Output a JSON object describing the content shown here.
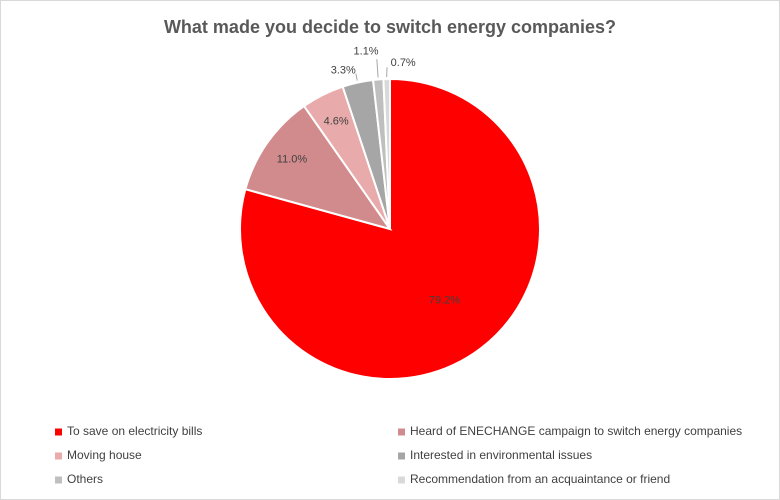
{
  "chart_data": {
    "type": "pie",
    "title": "What made you decide to switch energy companies?",
    "categories": [
      "To save on electricity bills",
      "Heard of ENECHANGE campaign to switch energy companies",
      "Moving house",
      "Interested in environmental issues",
      "Others",
      "Recommendation from an acquaintance or friend"
    ],
    "values": [
      79.2,
      11.0,
      4.6,
      3.3,
      1.1,
      0.7
    ],
    "value_labels": [
      "79.2%",
      "11.0%",
      "4.6%",
      "3.3%",
      "1.1%",
      "0.7%"
    ],
    "colors": [
      "#ff0000",
      "#d28b8d",
      "#e8aaaa",
      "#a6a6a6",
      "#bfbfbf",
      "#d9d9d9"
    ],
    "legend": "bottom"
  }
}
